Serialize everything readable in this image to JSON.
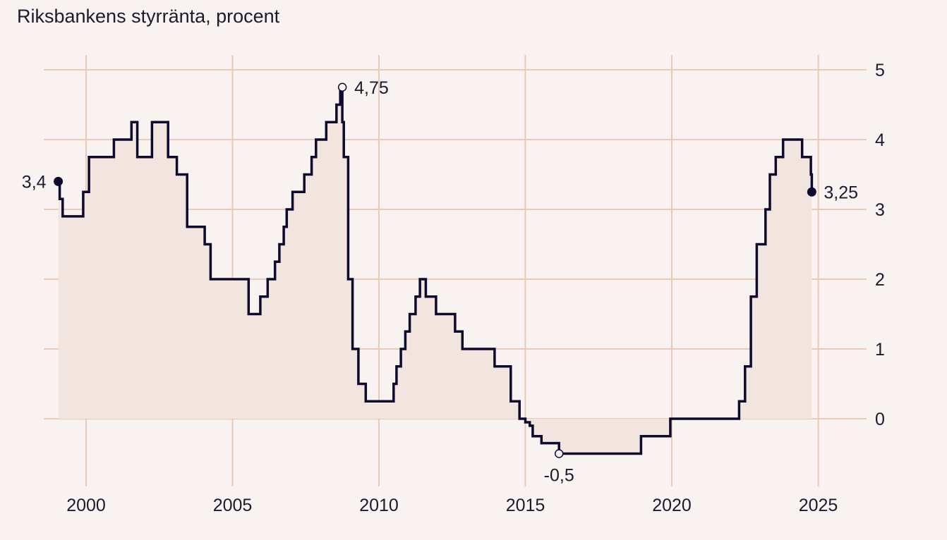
{
  "colors": {
    "background": "#f8f3f0",
    "grid": "#e9c9b8",
    "line": "#0e0a2e",
    "area": "#f2e4df",
    "text": "#1b1b2e"
  },
  "chart_data": {
    "type": "area",
    "title": "Riksbankens styrränta, procent",
    "xlabel": "",
    "ylabel": "",
    "xlim": [
      1998.6,
      2026.4
    ],
    "ylim": [
      -0.95,
      5.2
    ],
    "x_ticks": [
      2000,
      2005,
      2010,
      2015,
      2020,
      2025
    ],
    "x_tick_labels": [
      "2000",
      "2005",
      "2010",
      "2015",
      "2020",
      "2025"
    ],
    "y_ticks": [
      0,
      1,
      2,
      3,
      4,
      5
    ],
    "y_tick_labels": [
      "0",
      "1",
      "2",
      "3",
      "4",
      "5"
    ],
    "y_axis_position": "right",
    "grid": true,
    "legend": "none",
    "x": [
      1999.05,
      1999.1,
      1999.2,
      1999.35,
      1999.9,
      2000.1,
      2000.95,
      2001.55,
      2001.75,
      2002.25,
      2002.8,
      2003.1,
      2003.45,
      2004.05,
      2004.25,
      2004.95,
      2005.55,
      2005.85,
      2005.95,
      2006.2,
      2006.45,
      2006.6,
      2006.75,
      2006.85,
      2007.05,
      2007.45,
      2007.7,
      2007.85,
      2008.2,
      2008.55,
      2008.68,
      2008.75,
      2008.8,
      2008.88,
      2008.95,
      2009.1,
      2009.3,
      2009.55,
      2010.5,
      2010.6,
      2010.75,
      2010.9,
      2011.05,
      2011.25,
      2011.4,
      2011.6,
      2011.95,
      2012.1,
      2012.6,
      2012.85,
      2013.95,
      2014.5,
      2014.8,
      2015.0,
      2015.15,
      2015.25,
      2015.55,
      2016.15,
      2018.95,
      2019.95,
      2022.3,
      2022.5,
      2022.7,
      2022.9,
      2023.2,
      2023.35,
      2023.55,
      2023.8,
      2024.45,
      2024.75,
      2024.78
    ],
    "values": [
      3.4,
      3.15,
      2.9,
      2.9,
      3.25,
      3.75,
      4.0,
      4.25,
      3.75,
      4.25,
      3.75,
      3.5,
      2.75,
      2.5,
      2.0,
      2.0,
      1.5,
      1.5,
      1.75,
      2.0,
      2.25,
      2.5,
      2.75,
      3.0,
      3.25,
      3.5,
      3.75,
      4.0,
      4.25,
      4.5,
      4.75,
      4.25,
      3.75,
      3.75,
      2.0,
      1.0,
      0.5,
      0.25,
      0.5,
      0.75,
      1.0,
      1.25,
      1.5,
      1.75,
      2.0,
      1.75,
      1.5,
      1.5,
      1.25,
      1.0,
      0.75,
      0.25,
      0.0,
      -0.05,
      -0.1,
      -0.25,
      -0.35,
      -0.5,
      -0.25,
      0.0,
      0.25,
      0.75,
      1.75,
      2.5,
      3.0,
      3.5,
      3.75,
      4.0,
      3.75,
      3.5,
      3.25
    ],
    "annotations": [
      {
        "x": 1999.05,
        "y": 3.4,
        "label": "3,4",
        "marker": "filled",
        "label_side": "left"
      },
      {
        "x": 2008.75,
        "y": 4.75,
        "label": "4,75",
        "marker": "open",
        "label_side": "right"
      },
      {
        "x": 2016.15,
        "y": -0.5,
        "label": "-0,5",
        "marker": "open",
        "label_side": "below"
      },
      {
        "x": 2024.78,
        "y": 3.25,
        "label": "3,25",
        "marker": "filled",
        "label_side": "right"
      }
    ]
  }
}
